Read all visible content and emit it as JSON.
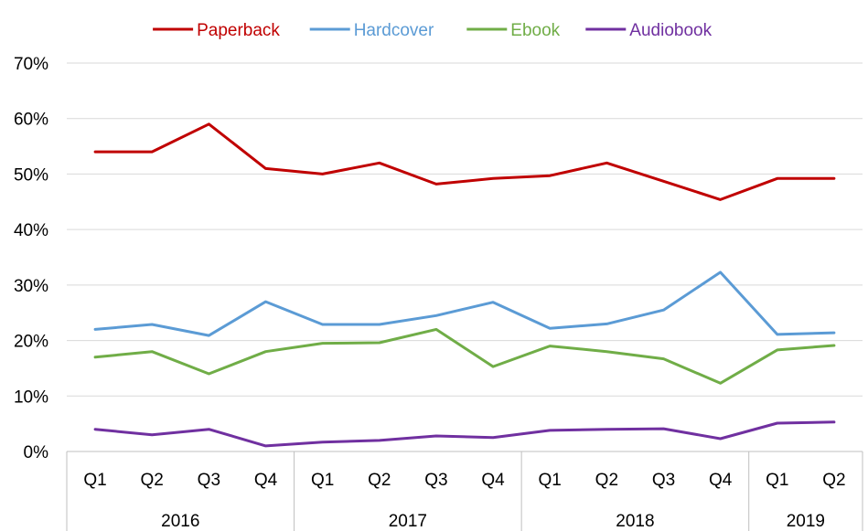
{
  "chart_data": {
    "type": "line",
    "title": "",
    "xlabel": "",
    "ylabel": "",
    "ylim": [
      0,
      70
    ],
    "y_ticks": [
      "0%",
      "10%",
      "20%",
      "30%",
      "40%",
      "50%",
      "60%",
      "70%"
    ],
    "grid": "horizontal",
    "legend_position": "top-center",
    "categories": [
      "Q1",
      "Q2",
      "Q3",
      "Q4",
      "Q1",
      "Q2",
      "Q3",
      "Q4",
      "Q1",
      "Q2",
      "Q3",
      "Q4",
      "Q1",
      "Q2"
    ],
    "year_groups": [
      {
        "label": "2016",
        "count": 4
      },
      {
        "label": "2017",
        "count": 4
      },
      {
        "label": "2018",
        "count": 4
      },
      {
        "label": "2019",
        "count": 2
      }
    ],
    "series": [
      {
        "name": "Paperback",
        "color": "#C00000",
        "values": [
          54,
          54,
          59,
          51,
          50,
          52,
          48.2,
          49.2,
          49.7,
          52,
          48.7,
          45.4,
          49.2,
          49.2
        ]
      },
      {
        "name": "Hardcover",
        "color": "#5B9BD5",
        "values": [
          22,
          22.9,
          20.9,
          27,
          22.9,
          22.9,
          24.5,
          26.9,
          22.2,
          23,
          25.5,
          32.3,
          21.1,
          21.4
        ]
      },
      {
        "name": "Ebook",
        "color": "#70AD47",
        "values": [
          17,
          18,
          14,
          18,
          19.5,
          19.6,
          22,
          15.3,
          19,
          18,
          16.7,
          12.3,
          18.3,
          19.1
        ]
      },
      {
        "name": "Audiobook",
        "color": "#7030A0",
        "values": [
          4,
          3,
          4,
          1,
          1.7,
          2,
          2.8,
          2.5,
          3.8,
          4,
          4.1,
          2.3,
          5.1,
          5.3
        ]
      }
    ]
  }
}
